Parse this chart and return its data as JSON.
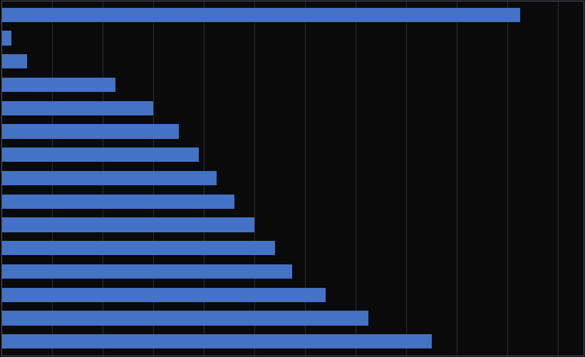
{
  "values_bottom_to_top": [
    17.0,
    14.5,
    12.8,
    11.5,
    10.8,
    10.0,
    9.2,
    8.5,
    7.8,
    7.0,
    6.0,
    4.5,
    1.0,
    0.4,
    20.5
  ],
  "bar_color": "#4472c4",
  "background_color": "#0a0a0a",
  "plot_bg_color": "#0a0a0a",
  "bar_height": 0.62,
  "xlim": [
    0,
    23
  ],
  "grid_color": "#2a2a3a",
  "spine_color": "#555566",
  "xtick_positions": [
    0,
    2,
    4,
    6,
    8,
    10,
    12,
    14,
    16,
    18,
    20,
    22
  ]
}
